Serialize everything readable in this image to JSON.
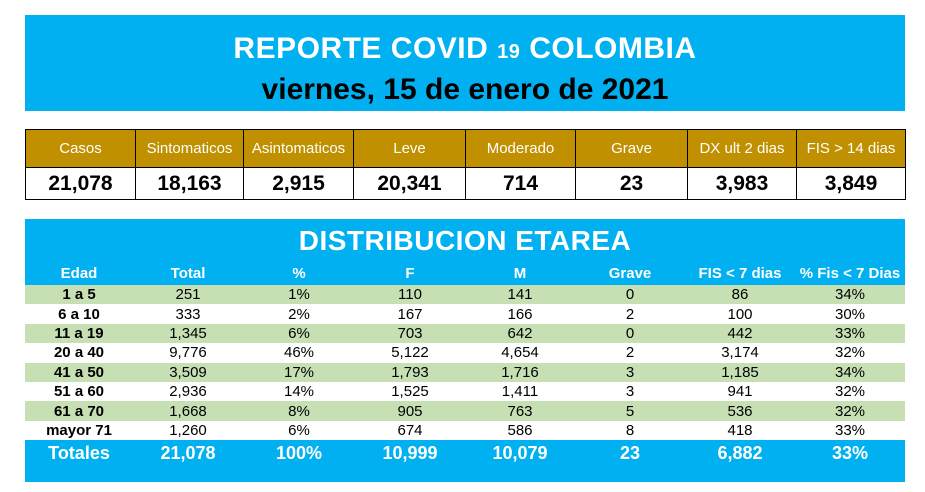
{
  "header": {
    "title_main": "REPORTE COVID",
    "title_number": "19",
    "title_country": "COLOMBIA",
    "date": "viernes, 15 de enero de 2021"
  },
  "colors": {
    "banner": "#00b0f0",
    "summary_header": "#c09000",
    "row_green": "#c6e0b4"
  },
  "summary": {
    "headers": [
      "Casos",
      "Sintomaticos",
      "Asintomaticos",
      "Leve",
      "Moderado",
      "Grave",
      "DX ult 2 dias",
      "FIS  > 14 dias"
    ],
    "values": [
      "21,078",
      "18,163",
      "2,915",
      "20,341",
      "714",
      "23",
      "3,983",
      "3,849"
    ]
  },
  "distribution": {
    "title": "DISTRIBUCION ETAREA",
    "columns": [
      "Edad",
      "Total",
      "%",
      "F",
      "M",
      "Grave",
      "FIS  < 7 dias",
      "% Fis < 7 Dias"
    ],
    "rows": [
      [
        "1 a 5",
        "251",
        "1%",
        "110",
        "141",
        "0",
        "86",
        "34%"
      ],
      [
        "6 a 10",
        "333",
        "2%",
        "167",
        "166",
        "2",
        "100",
        "30%"
      ],
      [
        "11 a 19",
        "1,345",
        "6%",
        "703",
        "642",
        "0",
        "442",
        "33%"
      ],
      [
        "20 a 40",
        "9,776",
        "46%",
        "5,122",
        "4,654",
        "2",
        "3,174",
        "32%"
      ],
      [
        "41 a 50",
        "3,509",
        "17%",
        "1,793",
        "1,716",
        "3",
        "1,185",
        "34%"
      ],
      [
        "51 a 60",
        "2,936",
        "14%",
        "1,525",
        "1,411",
        "3",
        "941",
        "32%"
      ],
      [
        "61 a 70",
        "1,668",
        "8%",
        "905",
        "763",
        "5",
        "536",
        "32%"
      ],
      [
        "mayor 71",
        "1,260",
        "6%",
        "674",
        "586",
        "8",
        "418",
        "33%"
      ]
    ],
    "totals": [
      "Totales",
      "21,078",
      "100%",
      "10,999",
      "10,079",
      "23",
      "6,882",
      "33%"
    ]
  }
}
